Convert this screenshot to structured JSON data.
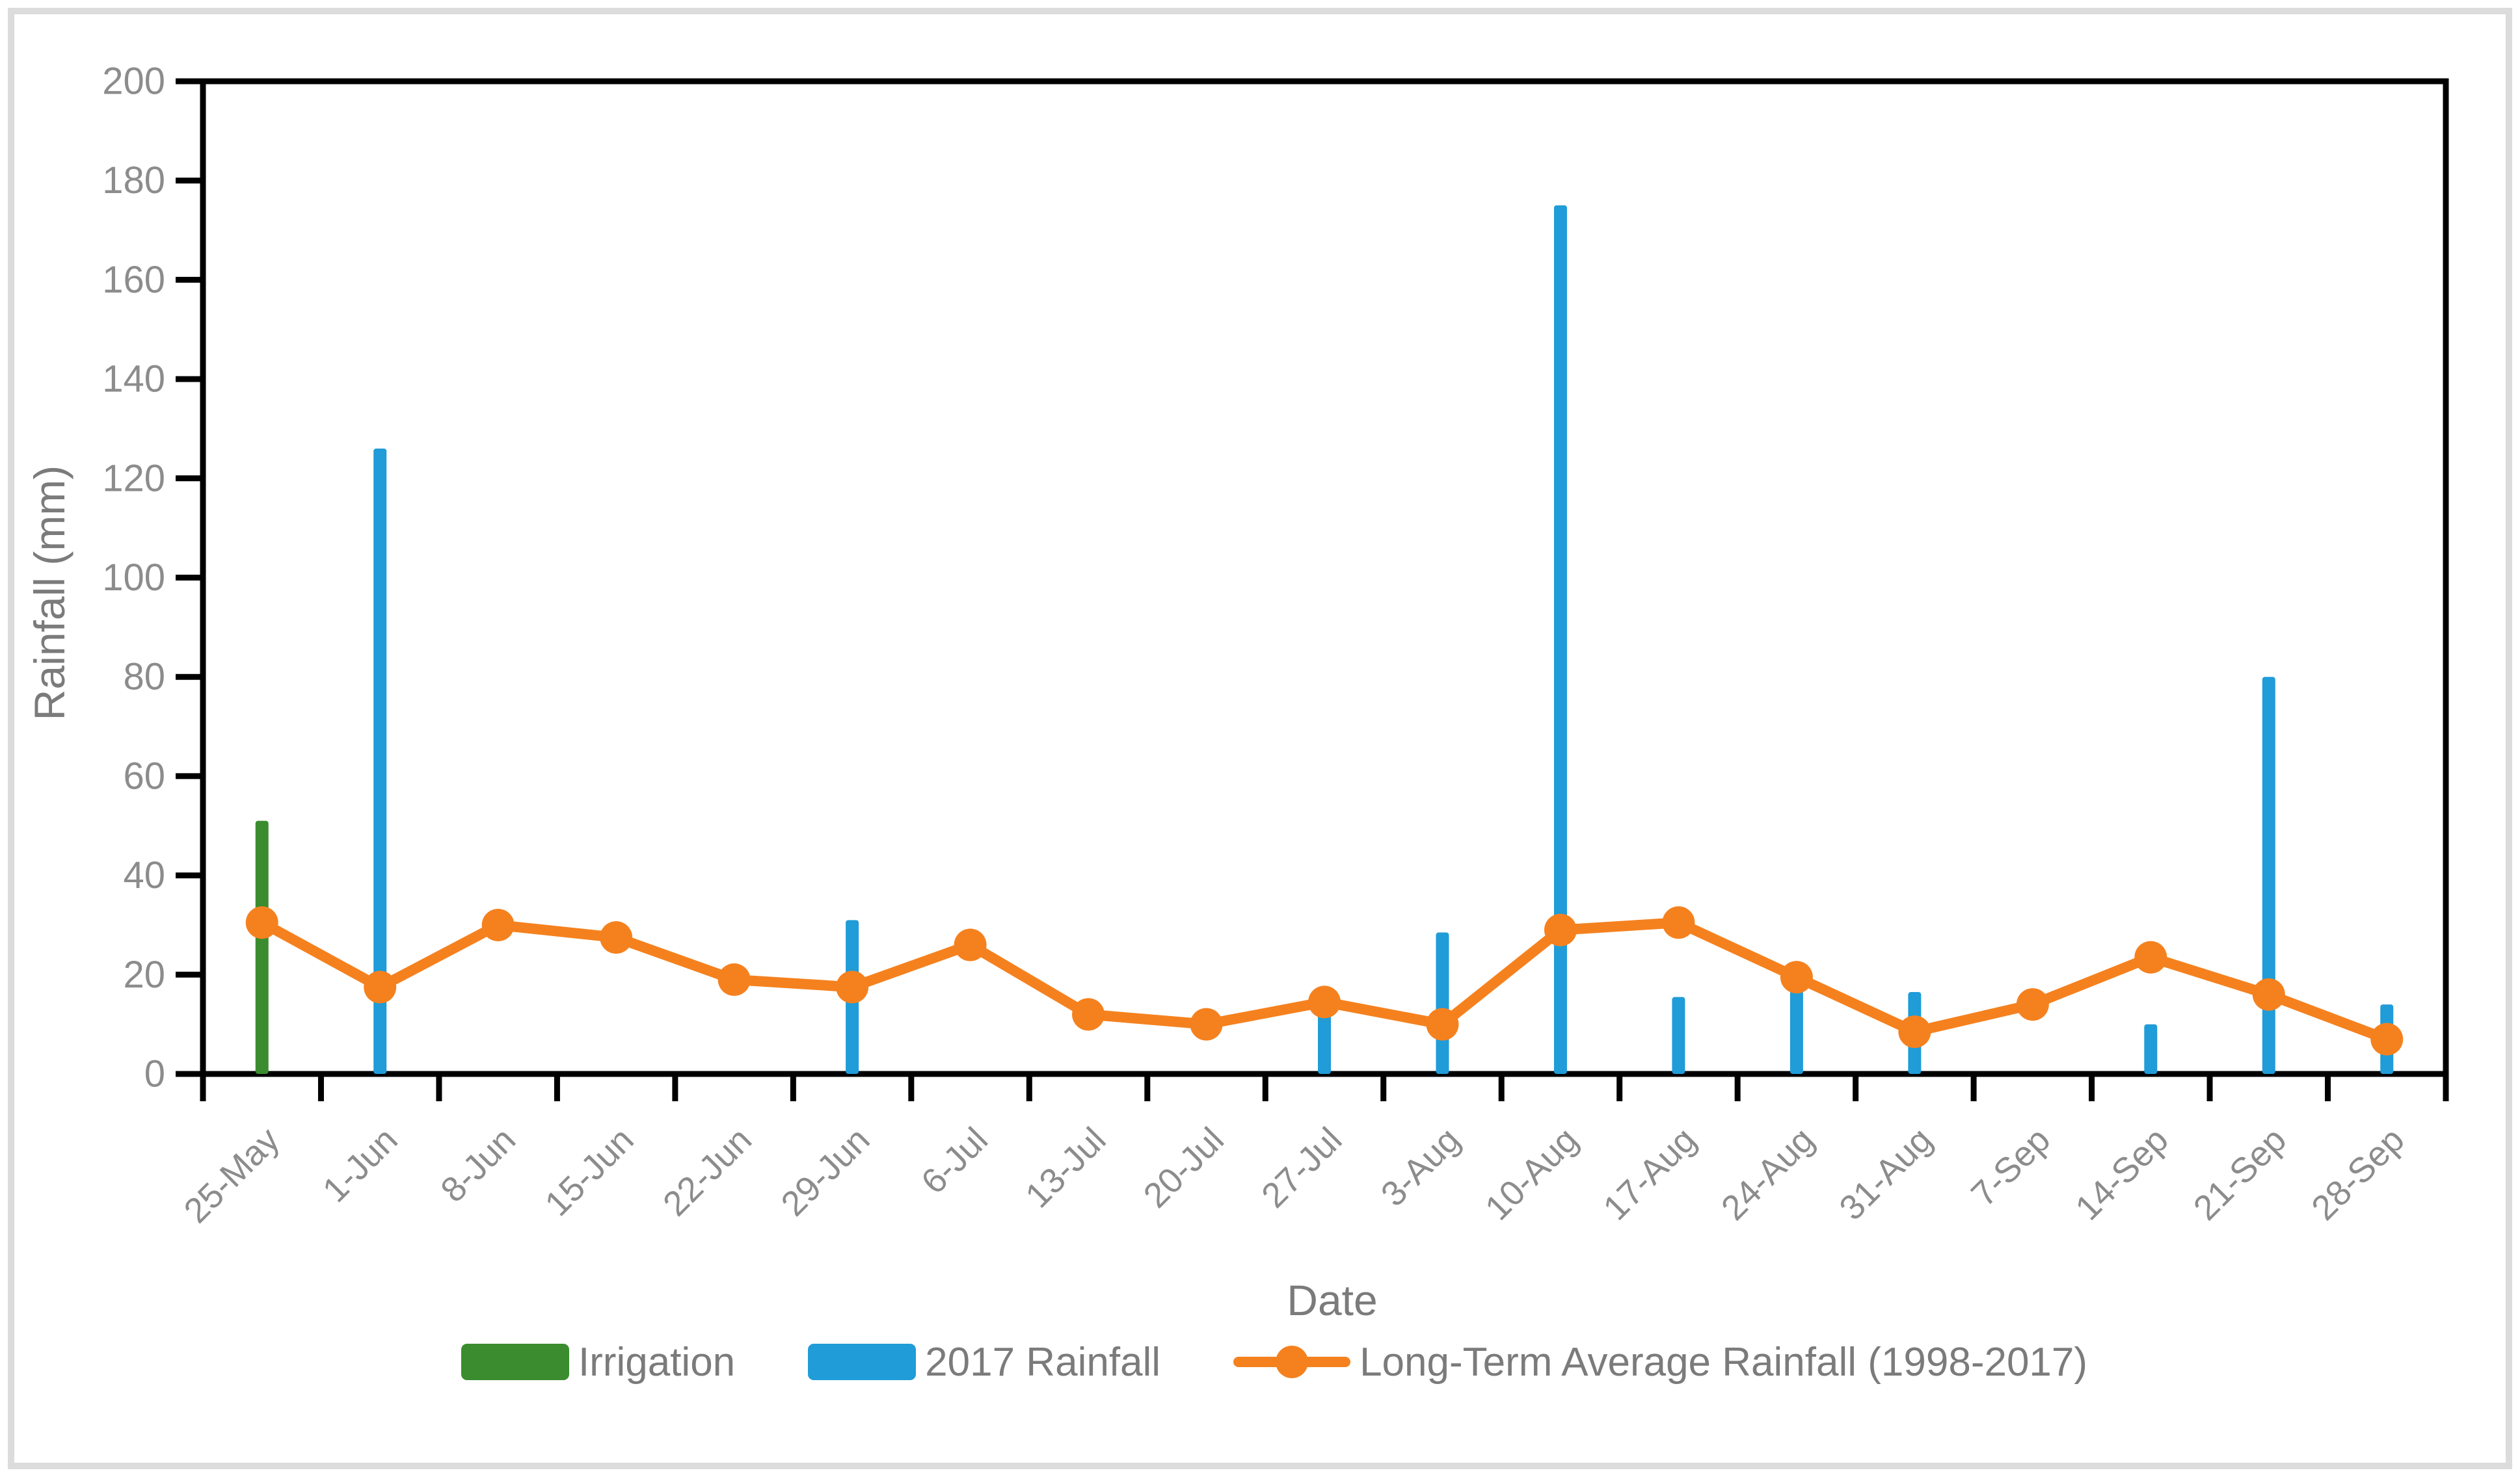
{
  "chart_data": {
    "type": "bar",
    "title": "",
    "xlabel": "Date",
    "ylabel": "Rainfall (mm)",
    "ylim": [
      0,
      200
    ],
    "ytick_step": 20,
    "grid": false,
    "legend_position": "bottom",
    "axis_color": "#000000",
    "tick_label_color": "#8C8C8C",
    "title_label_color": "#7B7B7B",
    "categories": [
      "25-May",
      "1-Jun",
      "8-Jun",
      "15-Jun",
      "22-Jun",
      "29-Jun",
      "6-Jul",
      "13-Jul",
      "20-Jul",
      "27-Jul",
      "3-Aug",
      "10-Aug",
      "17-Aug",
      "24-Aug",
      "31-Aug",
      "7-Sep",
      "14-Sep",
      "21-Sep",
      "28-Sep"
    ],
    "series": [
      {
        "name": "Irrigation",
        "type": "bar",
        "color": "#3A8C2E",
        "values": [
          51,
          0,
          0,
          0,
          0,
          0,
          0,
          0,
          0,
          0,
          0,
          0,
          0,
          0,
          0,
          0,
          0,
          0,
          0
        ]
      },
      {
        "name": "2017 Rainfall",
        "type": "bar",
        "color": "#209CD8",
        "values": [
          0,
          126,
          0,
          0,
          0,
          31,
          0,
          0,
          0,
          15,
          28.5,
          175,
          15.5,
          22.5,
          16.5,
          0,
          10,
          80,
          14
        ]
      },
      {
        "name": "Long-Term Average Rainfall (1998-2017)",
        "type": "line",
        "color": "#F5811E",
        "values": [
          30.5,
          17.5,
          30,
          27.5,
          19,
          17.5,
          26,
          12,
          10,
          14.5,
          10,
          29,
          30.5,
          19.5,
          8.5,
          14,
          23.5,
          16,
          7
        ]
      }
    ]
  }
}
